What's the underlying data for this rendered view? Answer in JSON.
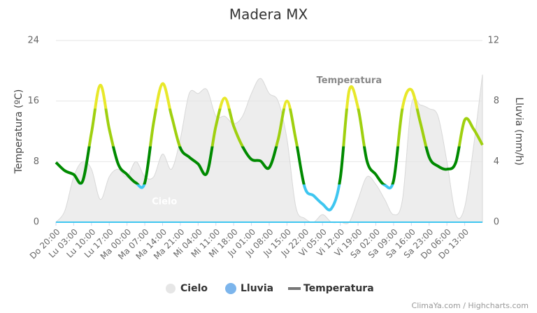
{
  "chart_data": {
    "type": "line",
    "title": "Madera MX",
    "y_label": "Temperatura (ºC)",
    "y2_label": "Lluvia (mm/h)",
    "categories": [
      "Do 20:00",
      null,
      "Lu 03:00",
      null,
      "Lu 10:00",
      null,
      "Lu 17:00",
      null,
      "Ma 00:00",
      null,
      "Ma 07:00",
      null,
      "Ma 14:00",
      null,
      "Ma 21:00",
      null,
      "Mi 04:00",
      null,
      "Mi 11:00",
      null,
      "Mi 18:00",
      null,
      "Ju 01:00",
      null,
      "Ju 08:00",
      null,
      "Ju 15:00",
      null,
      "Ju 22:00",
      null,
      "Vi 05:00",
      null,
      "Vi 12:00",
      null,
      "Vi 19:00",
      null,
      "Sa 02:00",
      null,
      "Sa 09:00",
      null,
      "Sa 16:00",
      null,
      "Sa 23:00",
      null,
      "Do 06:00",
      null,
      "Do 13:00",
      null,
      null
    ],
    "series": [
      {
        "name": "Cielo",
        "type": "area",
        "color": "#e6e6e6",
        "values": [
          0,
          1.5,
          6,
          8,
          7,
          3,
          6,
          7,
          6,
          8,
          6,
          6,
          9,
          7,
          11,
          17,
          17,
          17.5,
          14,
          14,
          13,
          14,
          17,
          19,
          17,
          16,
          11,
          2,
          0.5,
          0,
          1,
          0,
          0,
          0,
          3,
          6,
          5,
          3,
          1,
          3,
          15.5,
          15.5,
          15,
          14,
          8,
          1,
          2,
          10,
          19.5
        ]
      },
      {
        "name": "Lluvia",
        "type": "line",
        "axis": "y2",
        "color": "#3ec6f0",
        "legend_color": "#7cb5ec",
        "values": [
          0,
          0,
          0,
          0,
          0,
          0,
          0,
          0,
          0,
          0,
          0,
          0,
          0,
          0,
          0,
          0,
          0,
          0,
          0,
          0,
          0,
          0,
          0,
          0,
          0,
          0,
          0,
          0,
          0,
          0,
          0,
          0,
          0,
          0,
          0,
          0,
          0,
          0,
          0,
          0,
          0,
          0,
          0,
          0,
          0,
          0,
          0,
          0,
          0
        ]
      },
      {
        "name": "Temperatura",
        "type": "line",
        "color": "#777777",
        "zones": [
          {
            "value": 5,
            "color": "#3ec6f0"
          },
          {
            "value": 10,
            "color": "#008a00"
          },
          {
            "value": 15,
            "color": "#9fd00f"
          },
          {
            "color": "#e8e82a"
          }
        ],
        "values": [
          7.9,
          6.8,
          6.3,
          5.4,
          11.8,
          18.1,
          12.3,
          7.7,
          6.3,
          5.2,
          5.2,
          13.2,
          18.3,
          14.1,
          9.8,
          8.6,
          7.7,
          6.5,
          12.7,
          16.4,
          12.7,
          10.0,
          8.3,
          8.1,
          7.2,
          10.9,
          16.0,
          10.9,
          4.6,
          3.5,
          2.4,
          1.8,
          5.8,
          17.4,
          15.1,
          8.1,
          6.3,
          4.9,
          5.5,
          15.1,
          17.5,
          13.2,
          8.6,
          7.4,
          7.0,
          7.9,
          13.5,
          12.3,
          10.2
        ]
      }
    ],
    "annotations": [
      {
        "text": "Cielo",
        "series": 0,
        "at": 10
      },
      {
        "text": "Temperatura",
        "series": 2,
        "at": 33
      }
    ],
    "ylim": [
      0,
      24
    ],
    "yticks": [
      0,
      8,
      16,
      24
    ],
    "y2lim": [
      0,
      12
    ],
    "y2ticks": [
      0,
      4,
      8,
      12
    ],
    "grid": true,
    "legend": "bottom",
    "credits": "ClimaYa.com / Highcharts.com"
  }
}
